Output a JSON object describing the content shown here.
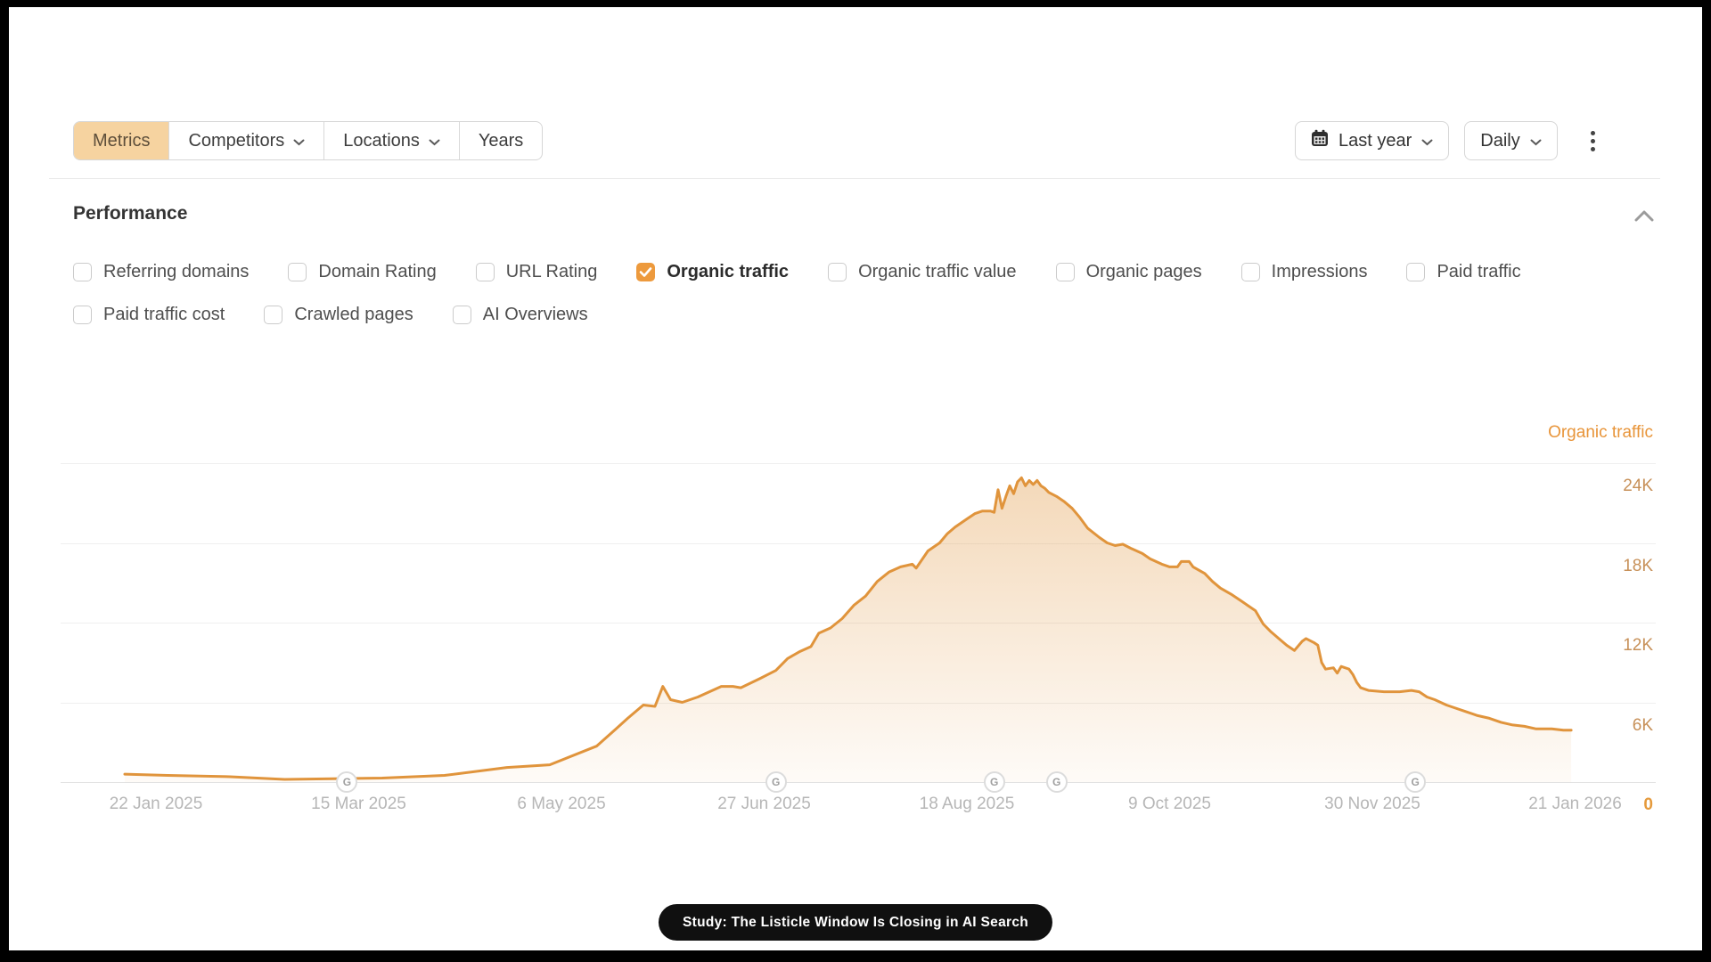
{
  "toolbar": {
    "tabs": [
      {
        "label": "Metrics",
        "active": true,
        "has_dropdown": false
      },
      {
        "label": "Competitors",
        "active": false,
        "has_dropdown": true
      },
      {
        "label": "Locations",
        "active": false,
        "has_dropdown": true
      },
      {
        "label": "Years",
        "active": false,
        "has_dropdown": false
      }
    ],
    "date_range_label": "Last year",
    "granularity_label": "Daily"
  },
  "performance": {
    "title": "Performance",
    "metric_rows": [
      [
        {
          "label": "Referring domains",
          "checked": false
        },
        {
          "label": "Domain Rating",
          "checked": false
        },
        {
          "label": "URL Rating",
          "checked": false
        },
        {
          "label": "Organic traffic",
          "checked": true
        },
        {
          "label": "Organic traffic value",
          "checked": false
        },
        {
          "label": "Organic pages",
          "checked": false
        },
        {
          "label": "Impressions",
          "checked": false
        },
        {
          "label": "Paid traffic",
          "checked": false
        }
      ],
      [
        {
          "label": "Paid traffic cost",
          "checked": false
        },
        {
          "label": "Crawled pages",
          "checked": false
        },
        {
          "label": "AI Overviews",
          "checked": false
        }
      ]
    ]
  },
  "chart_data": {
    "type": "area",
    "title": "Organic traffic",
    "ylabel": "Organic traffic",
    "unit": "K",
    "ylim": [
      0,
      27
    ],
    "grid": "horizontal",
    "legend_position": "top-right",
    "y_ticks": [
      {
        "label": "24K",
        "value": 24
      },
      {
        "label": "18K",
        "value": 18
      },
      {
        "label": "12K",
        "value": 12
      },
      {
        "label": "6K",
        "value": 6
      },
      {
        "label": "0",
        "value": 0
      }
    ],
    "x_ticks": [
      {
        "label": "22 Jan 2025",
        "day": 0
      },
      {
        "label": "15 Mar 2025",
        "day": 52
      },
      {
        "label": "6 May 2025",
        "day": 104
      },
      {
        "label": "27 Jun 2025",
        "day": 156
      },
      {
        "label": "18 Aug 2025",
        "day": 208
      },
      {
        "label": "9 Oct 2025",
        "day": 260
      },
      {
        "label": "30 Nov 2025",
        "day": 312
      },
      {
        "label": "21 Jan 2026",
        "day": 364
      }
    ],
    "google_update_markers": {
      "glyph": "G",
      "days": [
        49,
        159,
        215,
        231,
        323
      ]
    },
    "series": [
      {
        "name": "Organic traffic",
        "color": "#e0943c",
        "points_format": "[days_since_22_jan_2025, traffic_in_thousands]",
        "points": [
          [
            -8,
            0.6
          ],
          [
            3,
            0.5
          ],
          [
            19,
            0.4
          ],
          [
            33,
            0.2
          ],
          [
            58,
            0.3
          ],
          [
            74,
            0.5
          ],
          [
            90,
            1.1
          ],
          [
            101,
            1.3
          ],
          [
            113,
            2.7
          ],
          [
            118,
            4.0
          ],
          [
            121,
            4.8
          ],
          [
            125,
            5.8
          ],
          [
            128,
            5.7
          ],
          [
            130,
            7.2
          ],
          [
            132,
            6.2
          ],
          [
            135,
            6.0
          ],
          [
            139,
            6.4
          ],
          [
            145,
            7.2
          ],
          [
            148,
            7.2
          ],
          [
            150,
            7.1
          ],
          [
            155,
            7.8
          ],
          [
            159,
            8.4
          ],
          [
            162,
            9.3
          ],
          [
            165,
            9.8
          ],
          [
            168,
            10.2
          ],
          [
            170,
            11.2
          ],
          [
            173,
            11.6
          ],
          [
            176,
            12.3
          ],
          [
            179,
            13.3
          ],
          [
            182,
            14.0
          ],
          [
            185,
            15.1
          ],
          [
            188,
            15.8
          ],
          [
            191,
            16.2
          ],
          [
            194,
            16.4
          ],
          [
            195,
            16.1
          ],
          [
            198,
            17.4
          ],
          [
            201,
            18.0
          ],
          [
            203,
            18.7
          ],
          [
            205,
            19.2
          ],
          [
            208,
            19.8
          ],
          [
            210,
            20.2
          ],
          [
            212,
            20.4
          ],
          [
            214,
            20.4
          ],
          [
            215,
            20.3
          ],
          [
            216,
            22.0
          ],
          [
            217,
            20.6
          ],
          [
            218,
            21.5
          ],
          [
            219,
            22.3
          ],
          [
            220,
            21.7
          ],
          [
            221,
            22.6
          ],
          [
            222,
            22.9
          ],
          [
            223,
            22.3
          ],
          [
            224,
            22.7
          ],
          [
            225,
            22.4
          ],
          [
            226,
            22.7
          ],
          [
            227,
            22.3
          ],
          [
            228,
            22.1
          ],
          [
            229,
            21.8
          ],
          [
            231,
            21.5
          ],
          [
            233,
            21.1
          ],
          [
            235,
            20.6
          ],
          [
            237,
            19.9
          ],
          [
            239,
            19.1
          ],
          [
            242,
            18.4
          ],
          [
            244,
            18.0
          ],
          [
            246,
            17.8
          ],
          [
            248,
            17.9
          ],
          [
            250,
            17.6
          ],
          [
            253,
            17.2
          ],
          [
            255,
            16.8
          ],
          [
            258,
            16.4
          ],
          [
            260,
            16.2
          ],
          [
            262,
            16.2
          ],
          [
            263,
            16.6
          ],
          [
            265,
            16.6
          ],
          [
            266,
            16.2
          ],
          [
            269,
            15.7
          ],
          [
            271,
            15.1
          ],
          [
            273,
            14.6
          ],
          [
            276,
            14.1
          ],
          [
            278,
            13.7
          ],
          [
            280,
            13.3
          ],
          [
            282,
            12.9
          ],
          [
            284,
            11.9
          ],
          [
            286,
            11.3
          ],
          [
            288,
            10.8
          ],
          [
            290,
            10.3
          ],
          [
            292,
            9.9
          ],
          [
            294,
            10.6
          ],
          [
            295,
            10.8
          ],
          [
            297,
            10.5
          ],
          [
            298,
            10.3
          ],
          [
            299,
            9.0
          ],
          [
            300,
            8.5
          ],
          [
            302,
            8.6
          ],
          [
            303,
            8.2
          ],
          [
            304,
            8.7
          ],
          [
            306,
            8.5
          ],
          [
            307,
            8.1
          ],
          [
            308,
            7.5
          ],
          [
            309,
            7.1
          ],
          [
            311,
            6.9
          ],
          [
            315,
            6.8
          ],
          [
            319,
            6.8
          ],
          [
            322,
            6.9
          ],
          [
            324,
            6.8
          ],
          [
            326,
            6.4
          ],
          [
            328,
            6.2
          ],
          [
            331,
            5.8
          ],
          [
            333,
            5.6
          ],
          [
            336,
            5.3
          ],
          [
            339,
            5.0
          ],
          [
            342,
            4.8
          ],
          [
            345,
            4.5
          ],
          [
            348,
            4.3
          ],
          [
            351,
            4.2
          ],
          [
            354,
            4.0
          ],
          [
            358,
            4.0
          ],
          [
            361,
            3.9
          ],
          [
            363,
            3.9
          ]
        ]
      }
    ]
  },
  "colors": {
    "accent": "#e8953a",
    "active_tab_bg": "#f6d3a0",
    "checkbox_checked": "#ed9a3d",
    "badge_bg": "#101010",
    "badge_fg": "#ffffff"
  },
  "badge": {
    "text": "Study: The Listicle Window Is Closing in AI Search"
  }
}
